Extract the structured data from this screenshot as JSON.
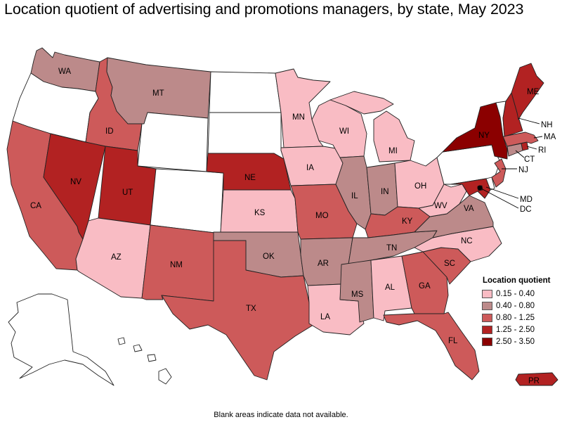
{
  "title": "Location quotient of advertising and promotions managers, by state, May 2023",
  "footnote": "Blank areas indicate data not available.",
  "legend": {
    "title": "Location quotient",
    "bins": [
      {
        "label": "0.15 - 0.40",
        "color": "#f9bcc4"
      },
      {
        "label": "0.40 - 0.80",
        "color": "#bc8a8a"
      },
      {
        "label": "0.80 - 1.25",
        "color": "#cd5a5a"
      },
      {
        "label": "1.25 - 2.50",
        "color": "#b22222"
      },
      {
        "label": "2.50 - 3.50",
        "color": "#8b0000"
      }
    ],
    "no_data_color": "#ffffff"
  },
  "states": {
    "AK": {
      "bin": null
    },
    "HI": {
      "bin": null
    },
    "OR": {
      "bin": null
    },
    "WY": {
      "bin": null
    },
    "ND": {
      "bin": null
    },
    "SD": {
      "bin": null
    },
    "CO": {
      "bin": null
    },
    "PA": {
      "bin": null
    },
    "VT": {
      "bin": null
    },
    "DE": {
      "bin": null
    },
    "WA": {
      "label": "WA",
      "bin": 1
    },
    "MT": {
      "label": "MT",
      "bin": 1
    },
    "ID": {
      "label": "ID",
      "bin": 2
    },
    "NV": {
      "label": "NV",
      "bin": 3
    },
    "UT": {
      "label": "UT",
      "bin": 3
    },
    "CA": {
      "label": "CA",
      "bin": 2
    },
    "AZ": {
      "label": "AZ",
      "bin": 0
    },
    "NM": {
      "label": "NM",
      "bin": 2
    },
    "TX": {
      "label": "TX",
      "bin": 2
    },
    "OK": {
      "label": "OK",
      "bin": 1
    },
    "KS": {
      "label": "KS",
      "bin": 0
    },
    "NE": {
      "label": "NE",
      "bin": 3
    },
    "MN": {
      "label": "MN",
      "bin": 0
    },
    "IA": {
      "label": "IA",
      "bin": 0
    },
    "MO": {
      "label": "MO",
      "bin": 2
    },
    "AR": {
      "label": "AR",
      "bin": 1
    },
    "LA": {
      "label": "LA",
      "bin": 0
    },
    "WI": {
      "label": "WI",
      "bin": 0
    },
    "IL": {
      "label": "IL",
      "bin": 1
    },
    "MI": {
      "label": "MI",
      "bin": 0
    },
    "IN": {
      "label": "IN",
      "bin": 1
    },
    "OH": {
      "label": "OH",
      "bin": 0
    },
    "KY": {
      "label": "KY",
      "bin": 2
    },
    "TN": {
      "label": "TN",
      "bin": 1
    },
    "MS": {
      "label": "MS",
      "bin": 1
    },
    "AL": {
      "label": "AL",
      "bin": 0
    },
    "GA": {
      "label": "GA",
      "bin": 2
    },
    "FL": {
      "label": "FL",
      "bin": 2
    },
    "SC": {
      "label": "SC",
      "bin": 2
    },
    "NC": {
      "label": "NC",
      "bin": 0
    },
    "VA": {
      "label": "VA",
      "bin": 1
    },
    "WV": {
      "label": "WV",
      "bin": 0
    },
    "MD": {
      "label": "MD",
      "bin": 3
    },
    "DC": {
      "label": "DC",
      "bin": 4
    },
    "NJ": {
      "label": "NJ",
      "bin": 2
    },
    "NY": {
      "label": "NY",
      "bin": 4
    },
    "CT": {
      "label": "CT",
      "bin": 1
    },
    "RI": {
      "label": "RI",
      "bin": 3
    },
    "MA": {
      "label": "MA",
      "bin": 2
    },
    "NH": {
      "label": "NH",
      "bin": 3
    },
    "ME": {
      "label": "ME",
      "bin": 3
    },
    "PR": {
      "label": "PR",
      "bin": 3
    }
  }
}
